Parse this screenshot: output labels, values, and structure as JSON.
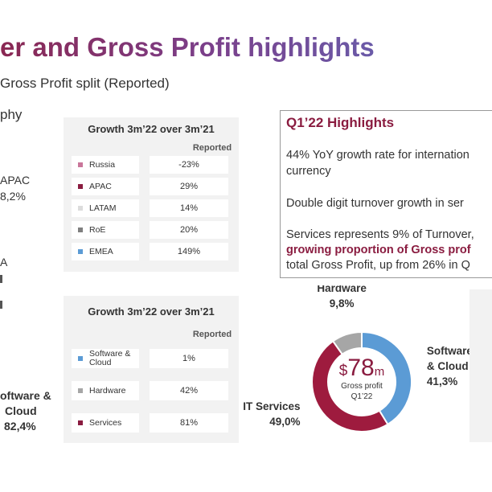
{
  "header": {
    "title": "er and Gross Profit highlights",
    "subtitle": "Gross Profit split (Reported)",
    "geo_label": "phy"
  },
  "left_labels": {
    "apac_name": "APAC",
    "apac_pct": "8,2%",
    "a_fragment": "A",
    "sc_name_1": "oftware &",
    "sc_name_2": "Cloud",
    "sc_pct": "82,4%"
  },
  "panel_geo": {
    "title": "Growth 3m’22 over 3m’21",
    "reported_label": "Reported",
    "rows": [
      {
        "name": "Russia",
        "value": "-23%",
        "color": "#c9769a"
      },
      {
        "name": "APAC",
        "value": "29%",
        "color": "#8a1c40"
      },
      {
        "name": "LATAM",
        "value": "14%",
        "color": "#dcdcdc"
      },
      {
        "name": "RoE",
        "value": "20%",
        "color": "#7f7f7f"
      },
      {
        "name": "EMEA",
        "value": "149%",
        "color": "#5b9bd5"
      }
    ]
  },
  "panel_seg": {
    "title": "Growth 3m’22 over 3m’21",
    "reported_label": "Reported",
    "rows": [
      {
        "name": "Software & Cloud",
        "value": "1%",
        "color": "#5b9bd5"
      },
      {
        "name": "Hardware",
        "value": "42%",
        "color": "#a6a6a6"
      },
      {
        "name": "Services",
        "value": "81%",
        "color": "#8a1c40"
      }
    ]
  },
  "highlights": {
    "title": "Q1’22 Highlights",
    "line1": "44% YoY growth rate for internation",
    "line2": "currency",
    "line3": "Double digit turnover growth in ser",
    "line4": "Services represents 9% of Turnover,",
    "line5": "growing proportion of Gross prof",
    "line6": "total Gross Profit, up from 26% in Q"
  },
  "donut_center": {
    "currency": "$",
    "amount": "78",
    "unit": "m",
    "caption1": "Gross profit",
    "caption2": "Q1’22"
  },
  "chart_data": {
    "type": "pie",
    "variant": "donut",
    "categories": [
      "Software & Cloud",
      "IT Services",
      "Hardware"
    ],
    "values": [
      41.3,
      49.0,
      9.8
    ],
    "value_labels": [
      "41,3%",
      "49,0%",
      "9,8%"
    ],
    "label_lines": [
      [
        "Software",
        "& Cloud"
      ],
      [
        "IT Services"
      ],
      [
        "Hardware"
      ]
    ],
    "colors": [
      "#5b9bd5",
      "#9e1b3e",
      "#a6a6a6"
    ]
  }
}
